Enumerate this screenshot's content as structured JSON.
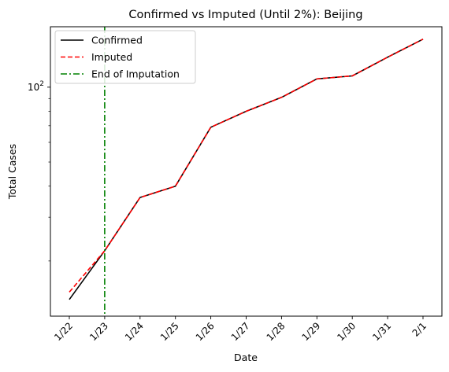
{
  "chart_data": {
    "type": "line",
    "title": "Confirmed vs Imputed (Until 2%): Beijing",
    "xlabel": "Date",
    "ylabel": "Total Cases",
    "yscale": "log",
    "ylim": [
      12,
      175
    ],
    "y_tick_labels": [
      {
        "value": 100,
        "label": "10",
        "exp": "2"
      }
    ],
    "categories": [
      "1/22",
      "1/23",
      "1/24",
      "1/25",
      "1/26",
      "1/27",
      "1/28",
      "1/29",
      "1/30",
      "1/31",
      "2/1"
    ],
    "series": [
      {
        "name": "Confirmed",
        "color": "#000000",
        "dash": "solid",
        "values": [
          14,
          22,
          36,
          40,
          69,
          80,
          91,
          108,
          111,
          132,
          156
        ]
      },
      {
        "name": "Imputed",
        "color": "#ff0000",
        "dash": "dashed",
        "values": [
          15,
          22,
          36,
          40,
          69,
          80,
          91,
          108,
          111,
          132,
          156
        ]
      }
    ],
    "vline": {
      "name": "End of Imputation",
      "x": "1/23",
      "color": "#008000",
      "dash": "dashdot"
    },
    "legend_position": "top-left",
    "grid": false
  }
}
